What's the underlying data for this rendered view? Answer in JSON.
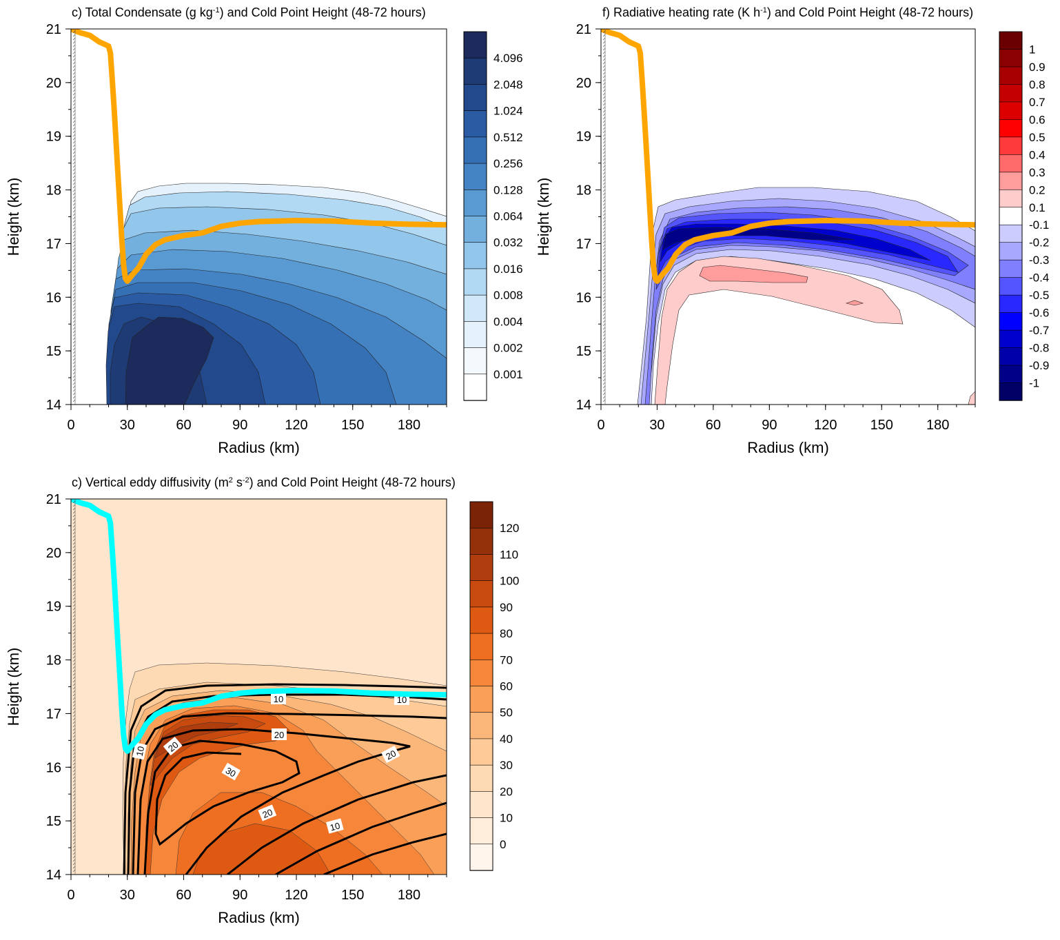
{
  "chart_data": [
    {
      "id": "condensate",
      "type": "heatmap",
      "title_main": "c) Total Condensate (g kg",
      "title_sup": "-1",
      "title_tail": ") and Cold Point Height  (48-72 hours)",
      "xlabel": "Radius (km)",
      "ylabel": "Height (km)",
      "xlim": [
        0,
        200
      ],
      "ylim": [
        14,
        21
      ],
      "xticks": [
        0,
        30,
        60,
        90,
        120,
        150,
        180
      ],
      "yticks": [
        14,
        15,
        16,
        17,
        18,
        19,
        20,
        21
      ],
      "colorbar": {
        "labels": [
          "4.096",
          "2.048",
          "1.024",
          "0.512",
          "0.256",
          "0.128",
          "0.064",
          "0.032",
          "0.016",
          "0.008",
          "0.004",
          "0.002",
          "0.001"
        ],
        "colors": [
          "#1c2b5c",
          "#1f3b76",
          "#22498b",
          "#2a5ba3",
          "#3670b4",
          "#4584c4",
          "#5a9ad2",
          "#74b0de",
          "#92c6ea",
          "#b2d9f3",
          "#d0e8f8",
          "#e6f2fb",
          "#f4f9fd",
          "#ffffff"
        ]
      },
      "curve_color": "#ffa500",
      "cold_point_height": {
        "radius": [
          0,
          5,
          10,
          15,
          20,
          21,
          22,
          23,
          24,
          25,
          26,
          27,
          28,
          29,
          30,
          33,
          36,
          40,
          45,
          50,
          60,
          70,
          80,
          90,
          100,
          120,
          140,
          160,
          180,
          200
        ],
        "height": [
          21.0,
          20.93,
          20.88,
          20.76,
          20.68,
          20.55,
          20.05,
          19.5,
          18.9,
          18.3,
          17.7,
          17.1,
          16.6,
          16.35,
          16.3,
          16.43,
          16.55,
          16.8,
          16.98,
          17.07,
          17.15,
          17.2,
          17.32,
          17.38,
          17.41,
          17.43,
          17.42,
          17.38,
          17.36,
          17.35
        ]
      }
    },
    {
      "id": "radiative",
      "type": "heatmap",
      "title_main": "f) Radiative heating rate (K h",
      "title_sup": "-1",
      "title_tail": ") and Cold Point Height  (48-72 hours)",
      "xlabel": "Radius (km)",
      "ylabel": "Height (km)",
      "xlim": [
        0,
        200
      ],
      "ylim": [
        14,
        21
      ],
      "xticks": [
        0,
        30,
        60,
        90,
        120,
        150,
        180
      ],
      "yticks": [
        14,
        15,
        16,
        17,
        18,
        19,
        20,
        21
      ],
      "colorbar": {
        "labels": [
          "1",
          "0.9",
          "0.8",
          "0.7",
          "0.6",
          "0.5",
          "0.4",
          "0.3",
          "0.2",
          "0.1",
          "-0.1",
          "-0.2",
          "-0.3",
          "-0.4",
          "-0.5",
          "-0.6",
          "-0.7",
          "-0.8",
          "-0.9",
          "-1"
        ],
        "colors": [
          "#6b0000",
          "#8b0000",
          "#a80000",
          "#c40000",
          "#dc0000",
          "#ff0000",
          "#ff3a3a",
          "#ff6b6b",
          "#ff9c9c",
          "#ffcccc",
          "#ffffff",
          "#ccccff",
          "#a8a8ff",
          "#8080ff",
          "#5555ff",
          "#2828ff",
          "#0000ff",
          "#0000cc",
          "#0000aa",
          "#000088",
          "#000066"
        ]
      },
      "curve_color": "#ffa500",
      "cold_point_height": {
        "radius": [
          0,
          5,
          10,
          15,
          20,
          21,
          22,
          23,
          24,
          25,
          26,
          27,
          28,
          29,
          30,
          33,
          36,
          40,
          45,
          50,
          60,
          70,
          80,
          90,
          100,
          120,
          140,
          160,
          180,
          200
        ],
        "height": [
          21.0,
          20.93,
          20.88,
          20.76,
          20.68,
          20.55,
          20.05,
          19.5,
          18.9,
          18.3,
          17.7,
          17.1,
          16.6,
          16.35,
          16.3,
          16.43,
          16.55,
          16.8,
          16.98,
          17.07,
          17.15,
          17.2,
          17.32,
          17.38,
          17.41,
          17.43,
          17.42,
          17.38,
          17.36,
          17.35
        ]
      }
    },
    {
      "id": "diffusivity",
      "type": "heatmap",
      "title_main": "c) Vertical eddy diffusivity (m",
      "title_sup": "2",
      "title_mid": " s",
      "title_sup2": "-2",
      "title_tail": ") and Cold Point Height  (48-72 hours)",
      "xlabel": "Radius (km)",
      "ylabel": "Height (km)",
      "xlim": [
        0,
        200
      ],
      "ylim": [
        14,
        21
      ],
      "xticks": [
        0,
        30,
        60,
        90,
        120,
        150,
        180
      ],
      "yticks": [
        14,
        15,
        16,
        17,
        18,
        19,
        20,
        21
      ],
      "colorbar": {
        "labels": [
          "120",
          "110",
          "100",
          "90",
          "80",
          "70",
          "60",
          "50",
          "40",
          "30",
          "20",
          "10",
          "0"
        ],
        "colors": [
          "#7a2306",
          "#94300a",
          "#b03d0e",
          "#c84a0f",
          "#de5a12",
          "#ee6f22",
          "#f6873a",
          "#f99f58",
          "#fbb77a",
          "#fdca98",
          "#fdd9b4",
          "#fee5cc",
          "#feeddb",
          "#fff5ec"
        ]
      },
      "curve_color": "#00ffff",
      "contour_labels": [
        "10",
        "10",
        "20",
        "20",
        "20",
        "10",
        "30",
        "20",
        "10"
      ],
      "cold_point_height": {
        "radius": [
          0,
          5,
          10,
          15,
          20,
          21,
          22,
          23,
          24,
          25,
          26,
          27,
          28,
          29,
          30,
          33,
          36,
          40,
          45,
          50,
          60,
          70,
          80,
          90,
          100,
          120,
          140,
          160,
          180,
          200
        ],
        "height": [
          21.0,
          20.93,
          20.88,
          20.76,
          20.68,
          20.55,
          20.05,
          19.5,
          18.9,
          18.3,
          17.7,
          17.1,
          16.6,
          16.35,
          16.3,
          16.43,
          16.55,
          16.8,
          16.98,
          17.07,
          17.15,
          17.2,
          17.32,
          17.38,
          17.41,
          17.43,
          17.42,
          17.38,
          17.36,
          17.35
        ]
      }
    }
  ]
}
